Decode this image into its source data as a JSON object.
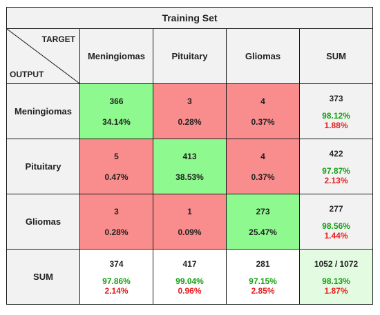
{
  "chart_data": {
    "type": "table",
    "title": "Training Set",
    "corner": {
      "target_label": "TARGET",
      "output_label": "OUTPUT"
    },
    "columns": [
      "Meningiomas",
      "Pituitary",
      "Gliomas",
      "SUM"
    ],
    "rows": [
      {
        "label": "Meningiomas",
        "cells": [
          {
            "count": "366",
            "pct": "34.14%",
            "kind": "correct"
          },
          {
            "count": "3",
            "pct": "0.28%",
            "kind": "error"
          },
          {
            "count": "4",
            "pct": "0.37%",
            "kind": "error"
          }
        ],
        "sum": {
          "total": "373",
          "correct": "98.12%",
          "error": "1.88%"
        }
      },
      {
        "label": "Pituitary",
        "cells": [
          {
            "count": "5",
            "pct": "0.47%",
            "kind": "error"
          },
          {
            "count": "413",
            "pct": "38.53%",
            "kind": "correct"
          },
          {
            "count": "4",
            "pct": "0.37%",
            "kind": "error"
          }
        ],
        "sum": {
          "total": "422",
          "correct": "97.87%",
          "error": "2.13%"
        }
      },
      {
        "label": "Gliomas",
        "cells": [
          {
            "count": "3",
            "pct": "0.28%",
            "kind": "error"
          },
          {
            "count": "1",
            "pct": "0.09%",
            "kind": "error"
          },
          {
            "count": "273",
            "pct": "25.47%",
            "kind": "correct"
          }
        ],
        "sum": {
          "total": "277",
          "correct": "98.56%",
          "error": "1.44%"
        }
      }
    ],
    "sum_row": {
      "label": "SUM",
      "cells": [
        {
          "total": "374",
          "correct": "97.86%",
          "error": "2.14%"
        },
        {
          "total": "417",
          "correct": "99.04%",
          "error": "0.96%"
        },
        {
          "total": "281",
          "correct": "97.15%",
          "error": "2.85%"
        }
      ],
      "overall": {
        "total": "1052 / 1072",
        "correct": "98.13%",
        "error": "1.87%"
      }
    },
    "colors": {
      "correct_bg": "#8ef98e",
      "error_bg": "#f98c8c",
      "header_bg": "#f2f2f2",
      "overall_bg": "#e3fbe0",
      "accuracy_text": "#13a013",
      "error_text": "#e81b1b"
    }
  }
}
